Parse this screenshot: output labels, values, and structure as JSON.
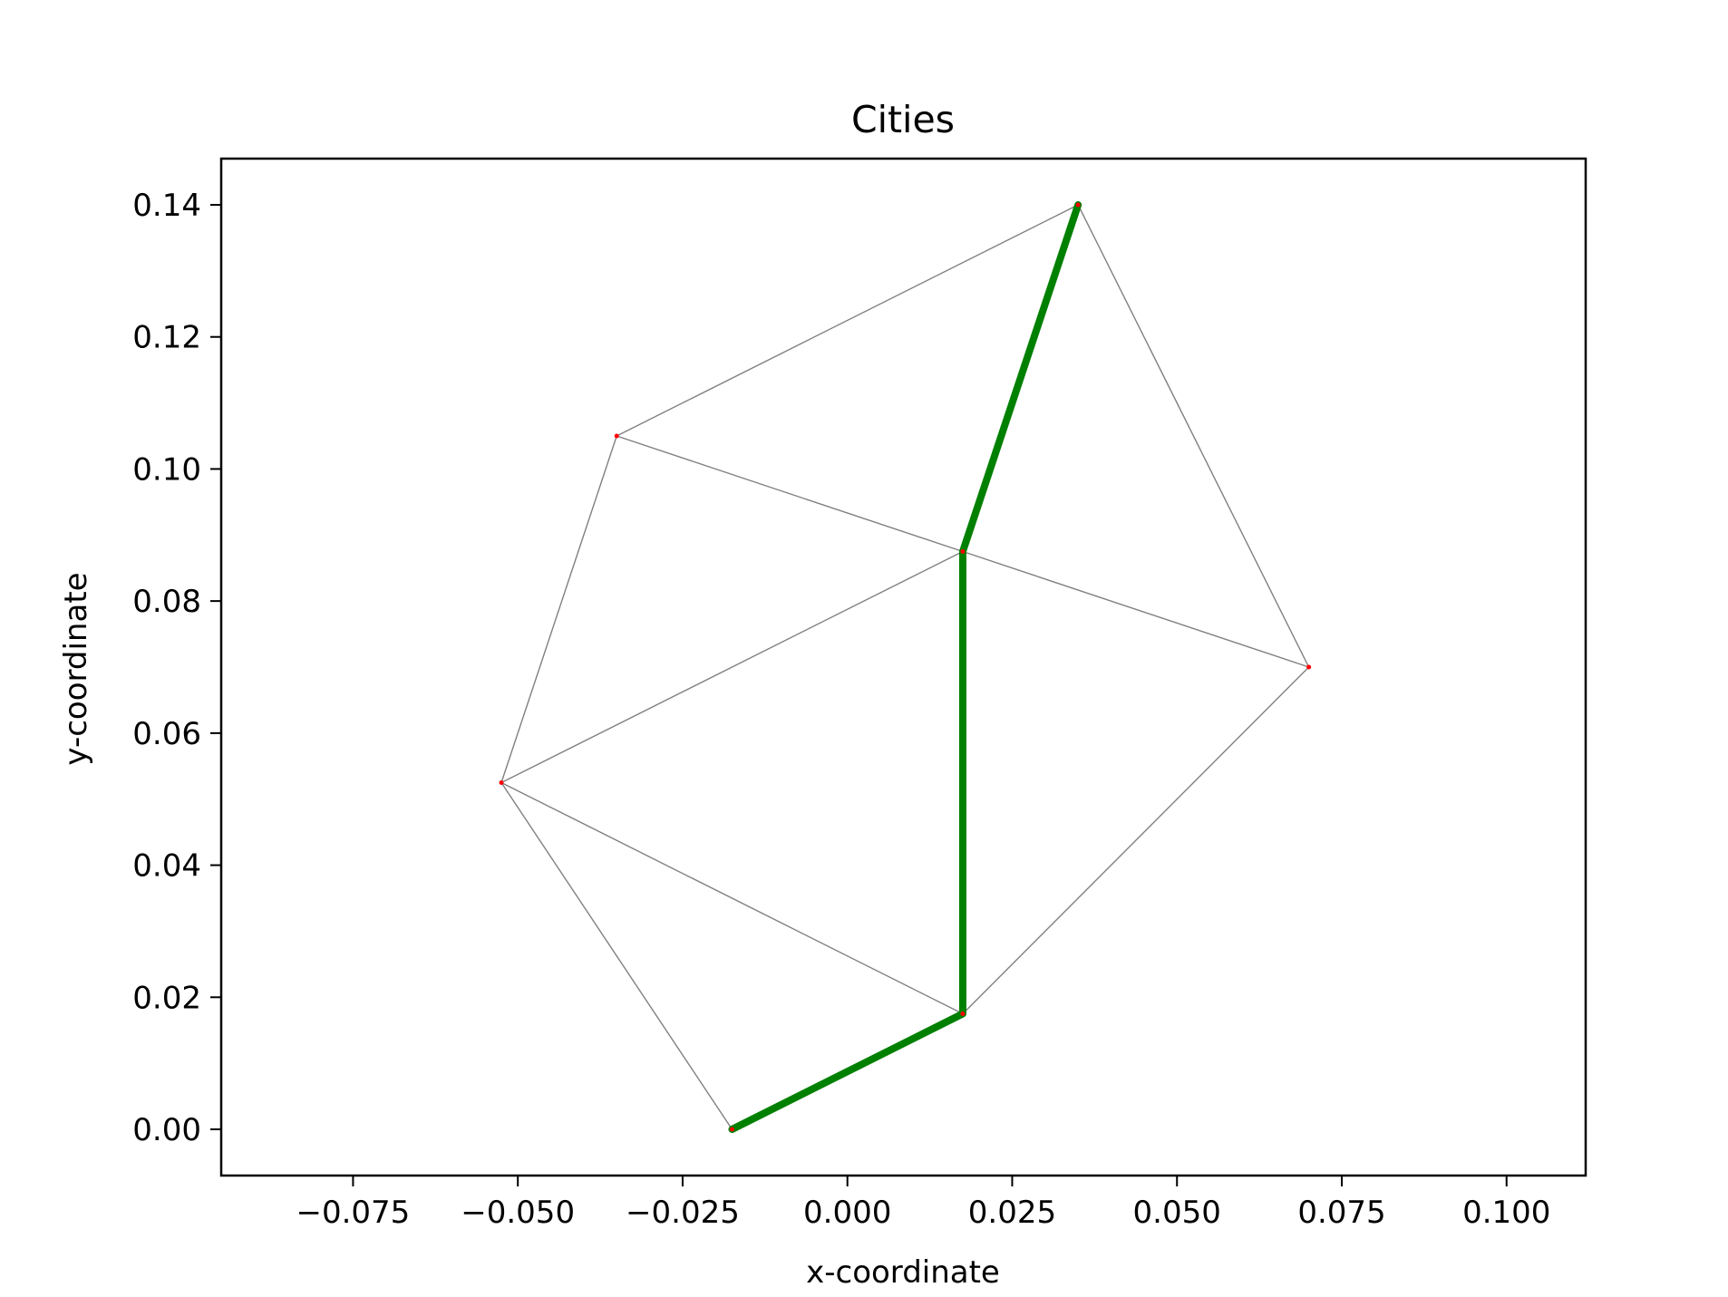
{
  "chart_data": {
    "type": "scatter",
    "title": "Cities",
    "xlabel": "x-coordinate",
    "ylabel": "y-coordinate",
    "xlim": [
      -0.095,
      0.112
    ],
    "ylim": [
      -0.007,
      0.147
    ],
    "x_ticks": [
      -0.075,
      -0.05,
      -0.025,
      0.0,
      0.025,
      0.05,
      0.075,
      0.1
    ],
    "x_tick_labels": [
      "−0.075",
      "−0.050",
      "−0.025",
      "0.000",
      "0.025",
      "0.050",
      "0.075",
      "0.100"
    ],
    "y_ticks": [
      0.0,
      0.02,
      0.04,
      0.06,
      0.08,
      0.1,
      0.12,
      0.14
    ],
    "y_tick_labels": [
      "0.00",
      "0.02",
      "0.04",
      "0.06",
      "0.08",
      "0.10",
      "0.12",
      "0.14"
    ],
    "grid": false,
    "points": [
      {
        "x": -0.0175,
        "y": 0.0
      },
      {
        "x": 0.0175,
        "y": 0.0175
      },
      {
        "x": -0.0525,
        "y": 0.0525
      },
      {
        "x": 0.0175,
        "y": 0.0875
      },
      {
        "x": -0.035,
        "y": 0.105
      },
      {
        "x": 0.035,
        "y": 0.14
      },
      {
        "x": 0.07,
        "y": 0.07
      }
    ],
    "edges": [
      [
        0,
        1
      ],
      [
        0,
        2
      ],
      [
        2,
        1
      ],
      [
        2,
        3
      ],
      [
        2,
        4
      ],
      [
        4,
        3
      ],
      [
        4,
        5
      ],
      [
        3,
        6
      ],
      [
        5,
        6
      ],
      [
        1,
        6
      ],
      [
        1,
        3
      ],
      [
        3,
        5
      ]
    ],
    "path": [
      0,
      1,
      3,
      5
    ],
    "colors": {
      "point": "#ff0000",
      "edge": "#808080",
      "path": "#008000"
    }
  }
}
